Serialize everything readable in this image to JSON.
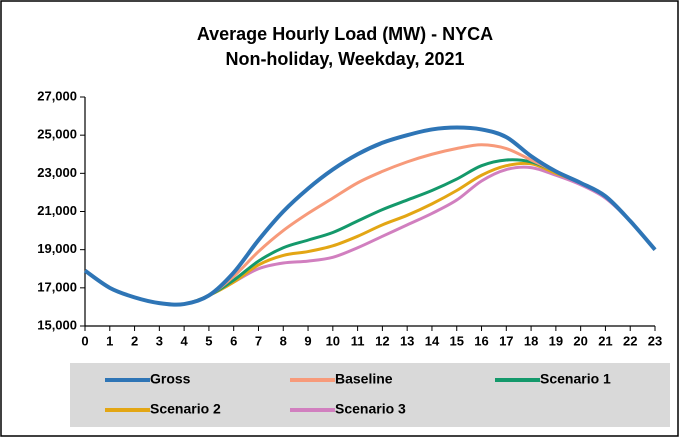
{
  "chart_data": {
    "type": "line",
    "title": "Average Hourly Load (MW) - NYCA",
    "subtitle": "Non-holiday, Weekday, 2021",
    "x": [
      0,
      1,
      2,
      3,
      4,
      5,
      6,
      7,
      8,
      9,
      10,
      11,
      12,
      13,
      14,
      15,
      16,
      17,
      18,
      19,
      20,
      21,
      22,
      23
    ],
    "xlim": [
      0,
      23
    ],
    "xticks": [
      0,
      1,
      2,
      3,
      4,
      5,
      6,
      7,
      8,
      9,
      10,
      11,
      12,
      13,
      14,
      15,
      16,
      17,
      18,
      19,
      20,
      21,
      22,
      23
    ],
    "ylim": [
      15000,
      27000
    ],
    "yticks": [
      {
        "value": 15000,
        "label": "15,000"
      },
      {
        "value": 17000,
        "label": "17,000"
      },
      {
        "value": 19000,
        "label": "19,000"
      },
      {
        "value": 21000,
        "label": "21,000"
      },
      {
        "value": 23000,
        "label": "23,000"
      },
      {
        "value": 25000,
        "label": "25,000"
      },
      {
        "value": 27000,
        "label": "27,000"
      }
    ],
    "grid": false,
    "legend": "bottom",
    "series": [
      {
        "name": "Gross",
        "color": "#2e75b6",
        "values": [
          17900,
          17000,
          16500,
          16200,
          16150,
          16600,
          17800,
          19500,
          21000,
          22200,
          23200,
          24000,
          24600,
          25000,
          25300,
          25400,
          25300,
          24900,
          23900,
          23100,
          22500,
          21800,
          20500,
          19000
        ]
      },
      {
        "name": "Baseline",
        "color": "#f79a7a",
        "values": [
          17900,
          17000,
          16500,
          16200,
          16150,
          16600,
          17600,
          18900,
          20000,
          20900,
          21700,
          22500,
          23100,
          23600,
          24000,
          24300,
          24500,
          24300,
          23700,
          23100,
          22500,
          21800,
          20500,
          19000
        ]
      },
      {
        "name": "Scenario 1",
        "color": "#14996b",
        "values": [
          17900,
          17000,
          16500,
          16200,
          16150,
          16600,
          17400,
          18400,
          19100,
          19500,
          19900,
          20500,
          21100,
          21600,
          22100,
          22700,
          23400,
          23700,
          23600,
          23100,
          22500,
          21800,
          20500,
          19000
        ]
      },
      {
        "name": "Scenario 2",
        "color": "#e3a614",
        "values": [
          17900,
          17000,
          16500,
          16200,
          16150,
          16600,
          17300,
          18200,
          18700,
          18900,
          19200,
          19700,
          20300,
          20800,
          21400,
          22100,
          22900,
          23400,
          23500,
          23000,
          22500,
          21800,
          20500,
          19000
        ]
      },
      {
        "name": "Scenario 3",
        "color": "#d17fbf",
        "values": [
          17900,
          17000,
          16500,
          16200,
          16150,
          16600,
          17300,
          18000,
          18300,
          18400,
          18600,
          19100,
          19700,
          20300,
          20900,
          21600,
          22600,
          23200,
          23300,
          22900,
          22400,
          21700,
          20500,
          19000
        ]
      }
    ]
  }
}
